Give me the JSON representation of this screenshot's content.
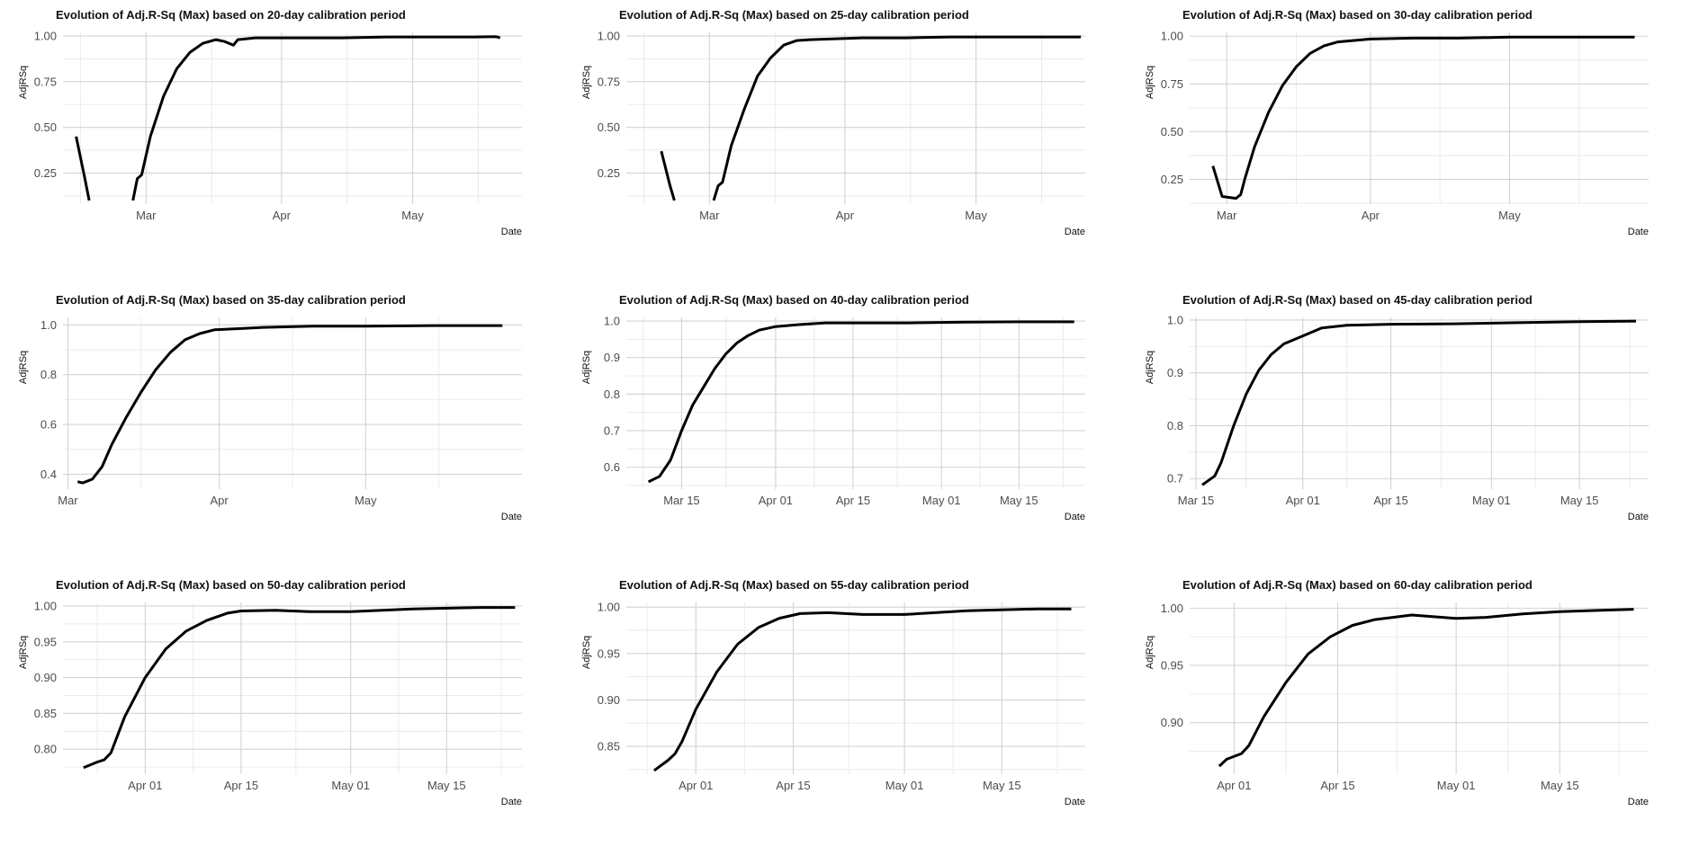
{
  "style": {
    "grid_major": "#d3d3d3",
    "grid_minor": "#ebebeb",
    "line": "#000000",
    "text": "#4d4d4d"
  },
  "chart_data": [
    {
      "type": "line",
      "title": "Evolution of Adj.R-Sq (Max) based on 20-day calibration period",
      "xlabel": "Date",
      "ylabel": "AdjRSq",
      "xlim": [
        "2020-02-11",
        "2020-05-26"
      ],
      "ylim": [
        0.08,
        1.02
      ],
      "yticks": [
        0.25,
        0.5,
        0.75,
        1.0
      ],
      "yticklabels": [
        "0.25",
        "0.50",
        "0.75",
        "1.00"
      ],
      "xticks": [
        "2020-03-01",
        "2020-04-01",
        "2020-05-01"
      ],
      "xticklabels": [
        "Mar",
        "Apr",
        "May"
      ],
      "minor_x": [
        "2020-02-15",
        "2020-03-16",
        "2020-04-16",
        "2020-05-16"
      ],
      "series": [
        {
          "x": [
            "2020-02-14",
            "2020-02-16",
            "2020-02-17"
          ],
          "y": [
            0.45,
            0.22,
            0.1
          ]
        },
        {
          "x": [
            "2020-02-27",
            "2020-02-28",
            "2020-02-29",
            "2020-03-02",
            "2020-03-05",
            "2020-03-08",
            "2020-03-11",
            "2020-03-14",
            "2020-03-17",
            "2020-03-19",
            "2020-03-21",
            "2020-03-22",
            "2020-03-24",
            "2020-03-26",
            "2020-04-05",
            "2020-04-15",
            "2020-04-25",
            "2020-05-05",
            "2020-05-15",
            "2020-05-20",
            "2020-05-21"
          ],
          "y": [
            0.1,
            0.22,
            0.24,
            0.45,
            0.67,
            0.82,
            0.91,
            0.96,
            0.98,
            0.97,
            0.95,
            0.98,
            0.985,
            0.99,
            0.99,
            0.99,
            0.995,
            0.995,
            0.995,
            0.997,
            0.99
          ]
        }
      ]
    },
    {
      "type": "line",
      "title": "Evolution of Adj.R-Sq (Max) based on 25-day calibration period",
      "xlabel": "Date",
      "ylabel": "AdjRSq",
      "xlim": [
        "2020-02-11",
        "2020-05-26"
      ],
      "ylim": [
        0.08,
        1.02
      ],
      "yticks": [
        0.25,
        0.5,
        0.75,
        1.0
      ],
      "yticklabels": [
        "0.25",
        "0.50",
        "0.75",
        "1.00"
      ],
      "xticks": [
        "2020-03-01",
        "2020-04-01",
        "2020-05-01"
      ],
      "xticklabels": [
        "Mar",
        "Apr",
        "May"
      ],
      "minor_x": [
        "2020-02-15",
        "2020-03-16",
        "2020-04-16",
        "2020-05-16"
      ],
      "series": [
        {
          "x": [
            "2020-02-19",
            "2020-02-21",
            "2020-02-22"
          ],
          "y": [
            0.37,
            0.18,
            0.1
          ]
        },
        {
          "x": [
            "2020-03-02",
            "2020-03-03",
            "2020-03-04",
            "2020-03-06",
            "2020-03-09",
            "2020-03-12",
            "2020-03-15",
            "2020-03-18",
            "2020-03-21",
            "2020-03-24",
            "2020-03-30",
            "2020-04-05",
            "2020-04-15",
            "2020-04-25",
            "2020-05-05",
            "2020-05-15",
            "2020-05-25"
          ],
          "y": [
            0.1,
            0.18,
            0.2,
            0.4,
            0.6,
            0.78,
            0.88,
            0.95,
            0.975,
            0.98,
            0.985,
            0.99,
            0.99,
            0.995,
            0.995,
            0.995,
            0.995
          ]
        }
      ]
    },
    {
      "type": "line",
      "title": "Evolution of Adj.R-Sq (Max) based on 30-day calibration period",
      "xlabel": "Date",
      "ylabel": "AdjRSq",
      "xlim": [
        "2020-02-22",
        "2020-05-31"
      ],
      "ylim": [
        0.12,
        1.02
      ],
      "yticks": [
        0.25,
        0.5,
        0.75,
        1.0
      ],
      "yticklabels": [
        "0.25",
        "0.50",
        "0.75",
        "1.00"
      ],
      "xticks": [
        "2020-03-01",
        "2020-04-01",
        "2020-05-01"
      ],
      "xticklabels": [
        "Mar",
        "Apr",
        "May"
      ],
      "minor_x": [
        "2020-03-16",
        "2020-04-16",
        "2020-05-16"
      ],
      "series": [
        {
          "x": [
            "2020-02-27",
            "2020-02-29",
            "2020-03-03",
            "2020-03-04",
            "2020-03-05",
            "2020-03-07",
            "2020-03-10",
            "2020-03-13",
            "2020-03-16",
            "2020-03-19",
            "2020-03-22",
            "2020-03-25",
            "2020-04-01",
            "2020-04-10",
            "2020-04-20",
            "2020-05-01",
            "2020-05-15",
            "2020-05-28"
          ],
          "y": [
            0.32,
            0.16,
            0.15,
            0.17,
            0.26,
            0.42,
            0.6,
            0.74,
            0.84,
            0.91,
            0.95,
            0.97,
            0.985,
            0.99,
            0.99,
            0.995,
            0.995,
            0.995
          ]
        }
      ]
    },
    {
      "type": "line",
      "title": "Evolution of Adj.R-Sq (Max) based on 35-day calibration period",
      "xlabel": "Date",
      "ylabel": "AdjRSq",
      "xlim": [
        "2020-02-29",
        "2020-06-02"
      ],
      "ylim": [
        0.34,
        1.03
      ],
      "yticks": [
        0.4,
        0.6,
        0.8,
        1.0
      ],
      "yticklabels": [
        "0.4",
        "0.6",
        "0.8",
        "1.0"
      ],
      "xticks": [
        "2020-03-01",
        "2020-04-01",
        "2020-05-01"
      ],
      "xticklabels": [
        "Mar",
        "Apr",
        "May"
      ],
      "minor_x": [
        "2020-03-16",
        "2020-04-16",
        "2020-05-16"
      ],
      "series": [
        {
          "x": [
            "2020-03-03",
            "2020-03-04",
            "2020-03-06",
            "2020-03-08",
            "2020-03-10",
            "2020-03-13",
            "2020-03-16",
            "2020-03-19",
            "2020-03-22",
            "2020-03-25",
            "2020-03-28",
            "2020-03-31",
            "2020-04-05",
            "2020-04-10",
            "2020-04-20",
            "2020-05-01",
            "2020-05-15",
            "2020-05-29"
          ],
          "y": [
            0.37,
            0.365,
            0.38,
            0.43,
            0.52,
            0.63,
            0.73,
            0.82,
            0.89,
            0.94,
            0.965,
            0.98,
            0.985,
            0.99,
            0.995,
            0.995,
            0.997,
            0.997
          ]
        }
      ]
    },
    {
      "type": "line",
      "title": "Evolution of Adj.R-Sq (Max) based on 40-day calibration period",
      "xlabel": "Date",
      "ylabel": "AdjRSq",
      "xlim": [
        "2020-03-05",
        "2020-05-27"
      ],
      "ylim": [
        0.54,
        1.01
      ],
      "yticks": [
        0.6,
        0.7,
        0.8,
        0.9,
        1.0
      ],
      "yticklabels": [
        "0.6",
        "0.7",
        "0.8",
        "0.9",
        "1.0"
      ],
      "xticks": [
        "2020-03-15",
        "2020-04-01",
        "2020-04-15",
        "2020-05-01",
        "2020-05-15"
      ],
      "xticklabels": [
        "Mar 15",
        "Apr 01",
        "Apr 15",
        "May 01",
        "May 15"
      ],
      "minor_x": [
        "2020-03-08",
        "2020-03-23",
        "2020-04-08",
        "2020-04-23",
        "2020-05-08",
        "2020-05-23"
      ],
      "series": [
        {
          "x": [
            "2020-03-09",
            "2020-03-11",
            "2020-03-13",
            "2020-03-15",
            "2020-03-17",
            "2020-03-19",
            "2020-03-21",
            "2020-03-23",
            "2020-03-25",
            "2020-03-27",
            "2020-03-29",
            "2020-04-01",
            "2020-04-05",
            "2020-04-10",
            "2020-04-15",
            "2020-04-25",
            "2020-05-05",
            "2020-05-15",
            "2020-05-25"
          ],
          "y": [
            0.56,
            0.575,
            0.62,
            0.7,
            0.77,
            0.82,
            0.87,
            0.91,
            0.94,
            0.96,
            0.975,
            0.985,
            0.99,
            0.995,
            0.995,
            0.995,
            0.997,
            0.998,
            0.998
          ]
        }
      ]
    },
    {
      "type": "line",
      "title": "Evolution of Adj.R-Sq (Max) based on 45-day calibration period",
      "xlabel": "Date",
      "ylabel": "AdjRSq",
      "xlim": [
        "2020-03-14",
        "2020-05-26"
      ],
      "ylim": [
        0.68,
        1.005
      ],
      "yticks": [
        0.7,
        0.8,
        0.9,
        1.0
      ],
      "yticklabels": [
        "0.7",
        "0.8",
        "0.9",
        "1.0"
      ],
      "xticks": [
        "2020-03-15",
        "2020-04-01",
        "2020-04-15",
        "2020-05-01",
        "2020-05-15"
      ],
      "xticklabels": [
        "Mar 15",
        "Apr 01",
        "Apr 15",
        "May 01",
        "May 15"
      ],
      "minor_x": [
        "2020-03-23",
        "2020-04-08",
        "2020-04-23",
        "2020-05-08",
        "2020-05-23"
      ],
      "series": [
        {
          "x": [
            "2020-03-16",
            "2020-03-18",
            "2020-03-19",
            "2020-03-21",
            "2020-03-23",
            "2020-03-25",
            "2020-03-27",
            "2020-03-29",
            "2020-04-01",
            "2020-04-04",
            "2020-04-08",
            "2020-04-15",
            "2020-04-25",
            "2020-05-05",
            "2020-05-15",
            "2020-05-24"
          ],
          "y": [
            0.688,
            0.705,
            0.73,
            0.8,
            0.86,
            0.905,
            0.935,
            0.955,
            0.97,
            0.985,
            0.99,
            0.992,
            0.993,
            0.995,
            0.997,
            0.998
          ]
        }
      ]
    },
    {
      "type": "line",
      "title": "Evolution of Adj.R-Sq (Max) based on 50-day calibration period",
      "xlabel": "Date",
      "ylabel": "AdjRSq",
      "xlim": [
        "2020-03-20",
        "2020-05-26"
      ],
      "ylim": [
        0.765,
        1.005
      ],
      "yticks": [
        0.8,
        0.85,
        0.9,
        0.95,
        1.0
      ],
      "yticklabels": [
        "0.80",
        "0.85",
        "0.90",
        "0.95",
        "1.00"
      ],
      "xticks": [
        "2020-04-01",
        "2020-04-15",
        "2020-05-01",
        "2020-05-15"
      ],
      "xticklabels": [
        "Apr 01",
        "Apr 15",
        "May 01",
        "May 15"
      ],
      "minor_x": [
        "2020-03-25",
        "2020-04-08",
        "2020-04-23",
        "2020-05-08",
        "2020-05-23"
      ],
      "series": [
        {
          "x": [
            "2020-03-23",
            "2020-03-25",
            "2020-03-26",
            "2020-03-27",
            "2020-03-29",
            "2020-04-01",
            "2020-04-04",
            "2020-04-07",
            "2020-04-10",
            "2020-04-13",
            "2020-04-15",
            "2020-04-20",
            "2020-04-25",
            "2020-05-01",
            "2020-05-10",
            "2020-05-20",
            "2020-05-25"
          ],
          "y": [
            0.774,
            0.782,
            0.785,
            0.795,
            0.845,
            0.9,
            0.94,
            0.965,
            0.98,
            0.99,
            0.993,
            0.994,
            0.992,
            0.992,
            0.996,
            0.998,
            0.998
          ]
        }
      ]
    },
    {
      "type": "line",
      "title": "Evolution of Adj.R-Sq (Max) based on 55-day calibration period",
      "xlabel": "Date",
      "ylabel": "AdjRSq",
      "xlim": [
        "2020-03-22",
        "2020-05-27"
      ],
      "ylim": [
        0.82,
        1.005
      ],
      "yticks": [
        0.85,
        0.9,
        0.95,
        1.0
      ],
      "yticklabels": [
        "0.85",
        "0.90",
        "0.95",
        "1.00"
      ],
      "xticks": [
        "2020-04-01",
        "2020-04-15",
        "2020-05-01",
        "2020-05-15"
      ],
      "xticklabels": [
        "Apr 01",
        "Apr 15",
        "May 01",
        "May 15"
      ],
      "minor_x": [
        "2020-03-25",
        "2020-04-08",
        "2020-04-23",
        "2020-05-08",
        "2020-05-23"
      ],
      "series": [
        {
          "x": [
            "2020-03-26",
            "2020-03-28",
            "2020-03-29",
            "2020-03-30",
            "2020-04-01",
            "2020-04-04",
            "2020-04-07",
            "2020-04-10",
            "2020-04-13",
            "2020-04-16",
            "2020-04-20",
            "2020-04-25",
            "2020-05-01",
            "2020-05-10",
            "2020-05-20",
            "2020-05-25"
          ],
          "y": [
            0.824,
            0.835,
            0.842,
            0.855,
            0.89,
            0.93,
            0.96,
            0.978,
            0.988,
            0.993,
            0.994,
            0.992,
            0.992,
            0.996,
            0.998,
            0.998
          ]
        }
      ]
    },
    {
      "type": "line",
      "title": "Evolution of Adj.R-Sq (Max) based on 60-day calibration period",
      "xlabel": "Date",
      "ylabel": "AdjRSq",
      "xlim": [
        "2020-03-26",
        "2020-05-27"
      ],
      "ylim": [
        0.855,
        1.005
      ],
      "yticks": [
        0.9,
        0.95,
        1.0
      ],
      "yticklabels": [
        "0.90",
        "0.95",
        "1.00"
      ],
      "xticks": [
        "2020-04-01",
        "2020-04-15",
        "2020-05-01",
        "2020-05-15"
      ],
      "xticklabels": [
        "Apr 01",
        "Apr 15",
        "May 01",
        "May 15"
      ],
      "minor_x": [
        "2020-04-08",
        "2020-04-23",
        "2020-05-08",
        "2020-05-23"
      ],
      "series": [
        {
          "x": [
            "2020-03-30",
            "2020-03-31",
            "2020-04-02",
            "2020-04-03",
            "2020-04-05",
            "2020-04-08",
            "2020-04-11",
            "2020-04-14",
            "2020-04-17",
            "2020-04-20",
            "2020-04-25",
            "2020-05-01",
            "2020-05-05",
            "2020-05-10",
            "2020-05-15",
            "2020-05-20",
            "2020-05-25"
          ],
          "y": [
            0.862,
            0.868,
            0.873,
            0.88,
            0.905,
            0.935,
            0.96,
            0.975,
            0.985,
            0.99,
            0.994,
            0.991,
            0.992,
            0.995,
            0.997,
            0.998,
            0.999
          ]
        }
      ]
    }
  ]
}
